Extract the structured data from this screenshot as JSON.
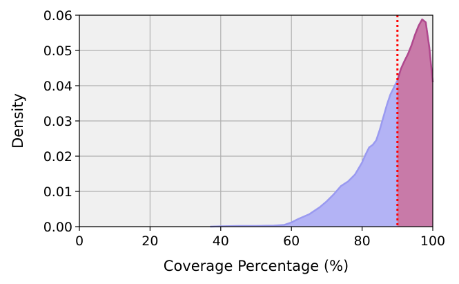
{
  "chart_data": {
    "type": "area",
    "title": "",
    "xlabel": "Coverage Percentage (%)",
    "ylabel": "Density",
    "xlim": [
      0,
      100
    ],
    "ylim": [
      0,
      0.06
    ],
    "x_ticks": [
      "0",
      "20",
      "40",
      "60",
      "80",
      "100"
    ],
    "y_ticks": [
      "0.00",
      "0.01",
      "0.02",
      "0.03",
      "0.04",
      "0.05",
      "0.06"
    ],
    "grid": true,
    "threshold": 90,
    "colors": {
      "plot_background": "#f0f0f0",
      "grid": "#b0b0b0",
      "fill": "#b3b3f5",
      "line": "#9a9af0",
      "highlight_fill": "#c87aa8",
      "highlight_line": "#b0488c",
      "threshold_line": "#ff0000"
    },
    "series": [
      {
        "x": [
          37,
          40,
          45,
          50,
          55,
          58,
          60,
          62,
          65,
          68,
          70,
          72,
          74,
          76,
          78,
          80,
          81,
          82,
          83,
          84,
          85,
          86,
          87,
          88,
          89,
          90,
          91,
          92,
          93,
          94,
          95,
          96,
          97,
          98,
          99,
          100
        ],
        "y": [
          0.0,
          0.0001,
          0.0002,
          0.0002,
          0.0003,
          0.0005,
          0.0012,
          0.0022,
          0.0035,
          0.0055,
          0.0072,
          0.0092,
          0.0115,
          0.0128,
          0.0148,
          0.0182,
          0.0205,
          0.0225,
          0.0232,
          0.0245,
          0.0275,
          0.031,
          0.0345,
          0.0375,
          0.0395,
          0.0415,
          0.0448,
          0.047,
          0.049,
          0.0515,
          0.0545,
          0.057,
          0.0588,
          0.058,
          0.051,
          0.041
        ]
      }
    ]
  }
}
